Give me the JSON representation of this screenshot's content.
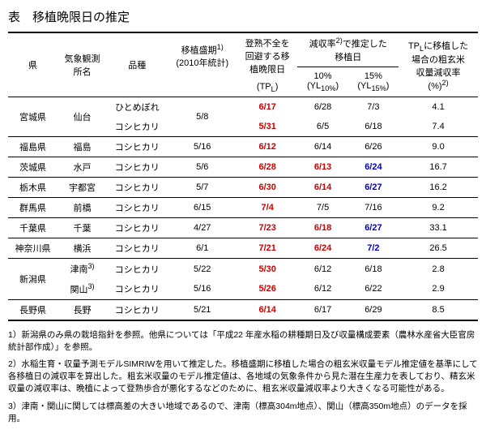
{
  "title": "表　移植晩限日の推定",
  "headers": {
    "pref": "県",
    "station": "気象観測\n所名",
    "variety": "品種",
    "peak": "移植盛期",
    "peak_sup": "1)",
    "peak_sub": "(2010年統計)",
    "limit": "登熟不全を\n回避する移\n植晩限日",
    "limit_sub": "(TP",
    "limit_sub2": ")",
    "yieldloss": "減収率",
    "yieldloss_sup": "2)",
    "yieldloss_tail": "で推定した\n移植日",
    "yield10": "10%\n(YL",
    "yield10_sub": "10%",
    "yield10_tail": ")",
    "yield15": "15%\n(YL",
    "yield15_sub": "15%",
    "yield15_tail": ")",
    "tpl": "TP",
    "tpl_tail": "に移植した\n場合の粗玄米\n収量減収率\n(%)",
    "tpl_sup": "2)"
  },
  "rows": [
    {
      "pref": "宮城県",
      "station": "仙台",
      "variety": "ひとめぼれ",
      "peak": "5/8",
      "limit": "6/17",
      "c10": "6/28",
      "c15": "7/3",
      "loss": "4.1",
      "rowspan_pref": 2,
      "rowspan_station": 2,
      "rowspan_peak": 2
    },
    {
      "pref": "",
      "station": "",
      "variety": "コシヒカリ",
      "peak": "",
      "limit": "5/31",
      "c10": "6/5",
      "c15": "6/18",
      "loss": "7.4",
      "border": "thin"
    },
    {
      "pref": "福島県",
      "station": "福島",
      "variety": "コシヒカリ",
      "peak": "5/16",
      "limit": "6/12",
      "c10": "6/14",
      "c15": "6/26",
      "loss": "9.0",
      "border": "thin"
    },
    {
      "pref": "茨城県",
      "station": "水戸",
      "variety": "コシヒカリ",
      "peak": "5/6",
      "limit": "6/28",
      "c10": "6/13",
      "c15": "6/24",
      "loss": "16.7",
      "border": "thin",
      "c10_color": "red",
      "c15_color": "blue"
    },
    {
      "pref": "栃木県",
      "station": "宇都宮",
      "variety": "コシヒカリ",
      "peak": "5/7",
      "limit": "6/30",
      "c10": "6/14",
      "c15": "6/27",
      "loss": "16.2",
      "border": "thin",
      "c10_color": "red",
      "c15_color": "blue"
    },
    {
      "pref": "群馬県",
      "station": "前橋",
      "variety": "コシヒカリ",
      "peak": "6/15",
      "limit": "7/4",
      "c10": "7/5",
      "c15": "7/16",
      "loss": "9.2",
      "border": "thin"
    },
    {
      "pref": "千葉県",
      "station": "千葉",
      "variety": "コシヒカリ",
      "peak": "4/27",
      "limit": "7/23",
      "c10": "6/18",
      "c15": "6/27",
      "loss": "33.1",
      "border": "thin",
      "c10_color": "red",
      "c15_color": "blue"
    },
    {
      "pref": "神奈川県",
      "station": "横浜",
      "variety": "コシヒカリ",
      "peak": "6/1",
      "limit": "7/21",
      "c10": "6/24",
      "c15": "7/2",
      "loss": "26.5",
      "border": "thin",
      "c10_color": "red",
      "c15_color": "blue"
    },
    {
      "pref": "新潟県",
      "station": "津南",
      "station_sup": "3)",
      "variety": "コシヒカリ",
      "peak": "5/22",
      "limit": "5/30",
      "c10": "6/12",
      "c15": "6/18",
      "loss": "2.8",
      "rowspan_pref": 2
    },
    {
      "pref": "",
      "station": "関山",
      "station_sup": "3)",
      "variety": "コシヒカリ",
      "peak": "5/16",
      "limit": "5/26",
      "c10": "6/12",
      "c15": "6/22",
      "loss": "2.9",
      "border": "thin"
    },
    {
      "pref": "長野県",
      "station": "長野",
      "variety": "コシヒカリ",
      "peak": "5/21",
      "limit": "6/14",
      "c10": "6/17",
      "c15": "6/29",
      "loss": "8.5",
      "border": "bottom"
    }
  ],
  "footnotes": [
    "1）新潟県のみ県の栽培指針を参照。他県については「平成22 年産水稲の耕種期日及び収量構成要素（農林水産省大臣官房統計部作成）」を参照。",
    "2）水稲生育・収量予測モデルSIMRIWを用いて推定した。移植盛期に移植した場合の粗玄米収量モデル推定値を基準にして各移植日の減収率を算出した。粗玄米収量のモデル推定値は、各地域の気象条件から見た潜在生産力を表しており、精玄米収量の減収率は、晩植によって登熟歩合が悪化するなどのために、粗玄米収量減収率より大きくなる可能性がある。",
    "3）津南・関山に関しては標高差の大きい地域であるので、津南（標高304m地点）、関山（標高350m地点）のデータを採用。"
  ]
}
